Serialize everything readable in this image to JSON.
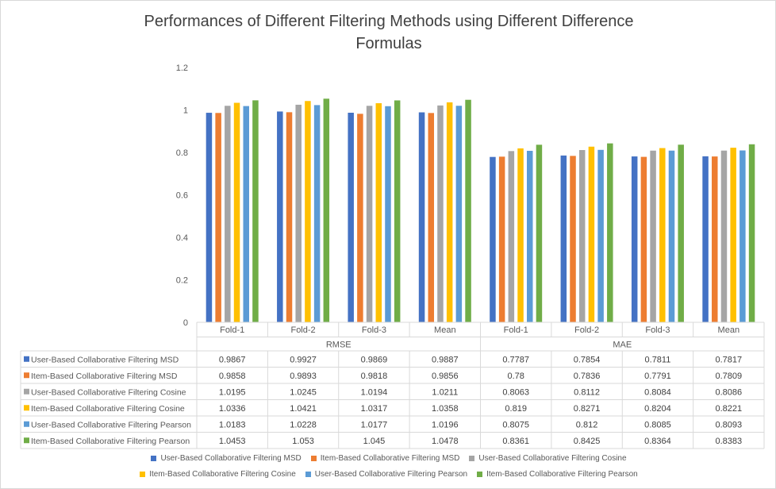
{
  "chart_data": {
    "type": "bar",
    "title": "Performances of Different Filtering Methods using Different Difference Formulas",
    "title_lines": [
      "Performances of Different Filtering Methods using Different Difference",
      "Formulas"
    ],
    "groups": [
      "RMSE",
      "MAE"
    ],
    "categories": [
      "Fold-1",
      "Fold-2",
      "Fold-3",
      "Mean",
      "Fold-1",
      "Fold-2",
      "Fold-3",
      "Mean"
    ],
    "ylim": [
      0,
      1.2
    ],
    "yticks": [
      "0",
      "0.2",
      "0.4",
      "0.6",
      "0.8",
      "1",
      "1.2"
    ],
    "grid": false,
    "legend_position": "bottom",
    "data_table": true,
    "series": [
      {
        "name": "User-Based Collaborative Filtering MSD",
        "color": "#4472c4",
        "values": [
          0.9867,
          0.9927,
          0.9869,
          0.9887,
          0.7787,
          0.7854,
          0.7811,
          0.7817
        ],
        "labels": [
          "0.9867",
          "0.9927",
          "0.9869",
          "0.9887",
          "0.7787",
          "0.7854",
          "0.7811",
          "0.7817"
        ]
      },
      {
        "name": "Item-Based Collaborative Filtering MSD",
        "color": "#ed7d31",
        "values": [
          0.9858,
          0.9893,
          0.9818,
          0.9856,
          0.78,
          0.7836,
          0.7791,
          0.7809
        ],
        "labels": [
          "0.9858",
          "0.9893",
          "0.9818",
          "0.9856",
          "0.78",
          "0.7836",
          "0.7791",
          "0.7809"
        ]
      },
      {
        "name": "User-Based Collaborative Filtering Cosine",
        "color": "#a5a5a5",
        "values": [
          1.0195,
          1.0245,
          1.0194,
          1.0211,
          0.8063,
          0.8112,
          0.8084,
          0.8086
        ],
        "labels": [
          "1.0195",
          "1.0245",
          "1.0194",
          "1.0211",
          "0.8063",
          "0.8112",
          "0.8084",
          "0.8086"
        ]
      },
      {
        "name": "Item-Based Collaborative Filtering Cosine",
        "color": "#ffc000",
        "values": [
          1.0336,
          1.0421,
          1.0317,
          1.0358,
          0.819,
          0.8271,
          0.8204,
          0.8221
        ],
        "labels": [
          "1.0336",
          "1.0421",
          "1.0317",
          "1.0358",
          "0.819",
          "0.8271",
          "0.8204",
          "0.8221"
        ]
      },
      {
        "name": "User-Based Collaborative Filtering Pearson",
        "color": "#5b9bd5",
        "values": [
          1.0183,
          1.0228,
          1.0177,
          1.0196,
          0.8075,
          0.812,
          0.8085,
          0.8093
        ],
        "labels": [
          "1.0183",
          "1.0228",
          "1.0177",
          "1.0196",
          "0.8075",
          "0.812",
          "0.8085",
          "0.8093"
        ]
      },
      {
        "name": "Item-Based Collaborative Filtering Pearson",
        "color": "#70ad47",
        "values": [
          1.0453,
          1.053,
          1.045,
          1.0478,
          0.8361,
          0.8425,
          0.8364,
          0.8383
        ],
        "labels": [
          "1.0453",
          "1.053",
          "1.045",
          "1.0478",
          "0.8361",
          "0.8425",
          "0.8364",
          "0.8383"
        ]
      }
    ]
  }
}
